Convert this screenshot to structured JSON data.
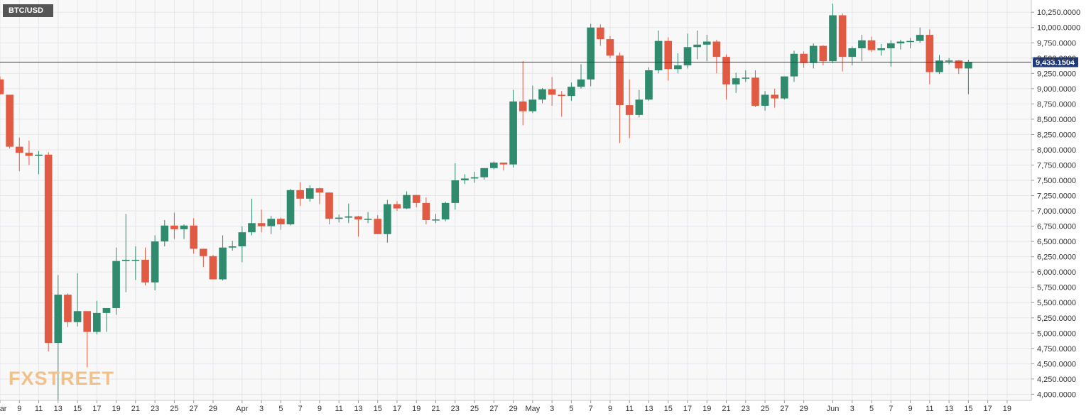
{
  "symbol": "BTC/USD",
  "logo": {
    "part1": "FX",
    "part2": "STREET"
  },
  "colors": {
    "up": "#2f8a6e",
    "down": "#e05a44",
    "grid": "#e6e6ec",
    "price_line": "#1f3a7a",
    "price_badge": "#1f3a7a"
  },
  "current_price": {
    "value": 9433.1504,
    "label": "9,433.1504"
  },
  "chart_data": {
    "type": "candlestick",
    "title": "",
    "xlabel": "",
    "ylabel": "",
    "ylim": [
      3900,
      10450
    ],
    "grid": true,
    "y_ticks": [
      {
        "value": 4000,
        "label": "4,000.0000"
      },
      {
        "value": 4250,
        "label": "4,250.0000"
      },
      {
        "value": 4500,
        "label": "4,500.0000"
      },
      {
        "value": 4750,
        "label": "4,750.0000"
      },
      {
        "value": 5000,
        "label": "5,000.0000"
      },
      {
        "value": 5250,
        "label": "5,250.0000"
      },
      {
        "value": 5500,
        "label": "5,500.0000"
      },
      {
        "value": 5750,
        "label": "5,750.0000"
      },
      {
        "value": 6000,
        "label": "6,000.0000"
      },
      {
        "value": 6250,
        "label": "6,250.0000"
      },
      {
        "value": 6500,
        "label": "6,500.0000"
      },
      {
        "value": 6750,
        "label": "6,750.0000"
      },
      {
        "value": 7000,
        "label": "7,000.0000"
      },
      {
        "value": 7250,
        "label": "7,250.0000"
      },
      {
        "value": 7500,
        "label": "7,500.0000"
      },
      {
        "value": 7750,
        "label": "7,750.0000"
      },
      {
        "value": 8000,
        "label": "8,000.0000"
      },
      {
        "value": 8250,
        "label": "8,250.0000"
      },
      {
        "value": 8500,
        "label": "8,500.0000"
      },
      {
        "value": 8750,
        "label": "8,750.0000"
      },
      {
        "value": 9000,
        "label": "9,000.0000"
      },
      {
        "value": 9250,
        "label": "9,250.0000"
      },
      {
        "value": 9500,
        "label": "9,500.0000"
      },
      {
        "value": 9750,
        "label": "9,750.0000"
      },
      {
        "value": 10000,
        "label": "10,000.0000"
      },
      {
        "value": 10250,
        "label": "10,250.0000"
      }
    ],
    "x_ticks": [
      {
        "date": "2020-03-07",
        "label": "Mar"
      },
      {
        "date": "2020-03-09",
        "label": "9"
      },
      {
        "date": "2020-03-11",
        "label": "11"
      },
      {
        "date": "2020-03-13",
        "label": "13"
      },
      {
        "date": "2020-03-15",
        "label": "15"
      },
      {
        "date": "2020-03-17",
        "label": "17"
      },
      {
        "date": "2020-03-19",
        "label": "19"
      },
      {
        "date": "2020-03-21",
        "label": "21"
      },
      {
        "date": "2020-03-23",
        "label": "23"
      },
      {
        "date": "2020-03-25",
        "label": "25"
      },
      {
        "date": "2020-03-27",
        "label": "27"
      },
      {
        "date": "2020-03-29",
        "label": "29"
      },
      {
        "date": "2020-04-01",
        "label": "Apr"
      },
      {
        "date": "2020-04-03",
        "label": "3"
      },
      {
        "date": "2020-04-05",
        "label": "5"
      },
      {
        "date": "2020-04-07",
        "label": "7"
      },
      {
        "date": "2020-04-09",
        "label": "9"
      },
      {
        "date": "2020-04-11",
        "label": "11"
      },
      {
        "date": "2020-04-13",
        "label": "13"
      },
      {
        "date": "2020-04-15",
        "label": "15"
      },
      {
        "date": "2020-04-17",
        "label": "17"
      },
      {
        "date": "2020-04-19",
        "label": "19"
      },
      {
        "date": "2020-04-21",
        "label": "21"
      },
      {
        "date": "2020-04-23",
        "label": "23"
      },
      {
        "date": "2020-04-25",
        "label": "25"
      },
      {
        "date": "2020-04-27",
        "label": "27"
      },
      {
        "date": "2020-04-29",
        "label": "29"
      },
      {
        "date": "2020-05-01",
        "label": "May"
      },
      {
        "date": "2020-05-03",
        "label": "3"
      },
      {
        "date": "2020-05-05",
        "label": "5"
      },
      {
        "date": "2020-05-07",
        "label": "7"
      },
      {
        "date": "2020-05-09",
        "label": "9"
      },
      {
        "date": "2020-05-11",
        "label": "11"
      },
      {
        "date": "2020-05-13",
        "label": "13"
      },
      {
        "date": "2020-05-15",
        "label": "15"
      },
      {
        "date": "2020-05-17",
        "label": "17"
      },
      {
        "date": "2020-05-19",
        "label": "19"
      },
      {
        "date": "2020-05-21",
        "label": "21"
      },
      {
        "date": "2020-05-23",
        "label": "23"
      },
      {
        "date": "2020-05-25",
        "label": "25"
      },
      {
        "date": "2020-05-27",
        "label": "27"
      },
      {
        "date": "2020-05-29",
        "label": "29"
      },
      {
        "date": "2020-06-01",
        "label": "Jun"
      },
      {
        "date": "2020-06-03",
        "label": "3"
      },
      {
        "date": "2020-06-05",
        "label": "5"
      },
      {
        "date": "2020-06-07",
        "label": "7"
      },
      {
        "date": "2020-06-09",
        "label": "9"
      },
      {
        "date": "2020-06-11",
        "label": "11"
      },
      {
        "date": "2020-06-13",
        "label": "13"
      },
      {
        "date": "2020-06-15",
        "label": "15"
      },
      {
        "date": "2020-06-17",
        "label": "17"
      },
      {
        "date": "2020-06-19",
        "label": "19"
      }
    ],
    "x_range": [
      "2020-03-07",
      "2020-06-20"
    ],
    "candles": [
      {
        "date": "2020-03-07",
        "o": 9150,
        "h": 9200,
        "l": 8900,
        "c": 8910
      },
      {
        "date": "2020-03-08",
        "o": 8900,
        "h": 8900,
        "l": 8020,
        "c": 8050
      },
      {
        "date": "2020-03-09",
        "o": 8050,
        "h": 8200,
        "l": 7650,
        "c": 7950
      },
      {
        "date": "2020-03-10",
        "o": 7950,
        "h": 8150,
        "l": 7750,
        "c": 7900
      },
      {
        "date": "2020-03-11",
        "o": 7900,
        "h": 7980,
        "l": 7600,
        "c": 7920
      },
      {
        "date": "2020-03-12",
        "o": 7920,
        "h": 7960,
        "l": 4700,
        "c": 4840
      },
      {
        "date": "2020-03-13",
        "o": 4840,
        "h": 5950,
        "l": 3900,
        "c": 5630
      },
      {
        "date": "2020-03-14",
        "o": 5630,
        "h": 5650,
        "l": 5100,
        "c": 5180
      },
      {
        "date": "2020-03-15",
        "o": 5180,
        "h": 5980,
        "l": 5110,
        "c": 5360
      },
      {
        "date": "2020-03-16",
        "o": 5360,
        "h": 5360,
        "l": 4440,
        "c": 5020
      },
      {
        "date": "2020-03-17",
        "o": 5020,
        "h": 5530,
        "l": 4980,
        "c": 5330
      },
      {
        "date": "2020-03-18",
        "o": 5330,
        "h": 5410,
        "l": 5020,
        "c": 5410
      },
      {
        "date": "2020-03-19",
        "o": 5410,
        "h": 6400,
        "l": 5300,
        "c": 6180
      },
      {
        "date": "2020-03-20",
        "o": 6180,
        "h": 6950,
        "l": 5670,
        "c": 6200
      },
      {
        "date": "2020-03-21",
        "o": 6200,
        "h": 6420,
        "l": 5870,
        "c": 6200
      },
      {
        "date": "2020-03-22",
        "o": 6200,
        "h": 6400,
        "l": 5780,
        "c": 5830
      },
      {
        "date": "2020-03-23",
        "o": 5830,
        "h": 6600,
        "l": 5700,
        "c": 6500
      },
      {
        "date": "2020-03-24",
        "o": 6500,
        "h": 6850,
        "l": 6420,
        "c": 6760
      },
      {
        "date": "2020-03-25",
        "o": 6760,
        "h": 6970,
        "l": 6540,
        "c": 6700
      },
      {
        "date": "2020-03-26",
        "o": 6700,
        "h": 6780,
        "l": 6540,
        "c": 6760
      },
      {
        "date": "2020-03-27",
        "o": 6760,
        "h": 6880,
        "l": 6300,
        "c": 6380
      },
      {
        "date": "2020-03-28",
        "o": 6380,
        "h": 6380,
        "l": 6080,
        "c": 6260
      },
      {
        "date": "2020-03-29",
        "o": 6260,
        "h": 6280,
        "l": 5880,
        "c": 5880
      },
      {
        "date": "2020-03-30",
        "o": 5880,
        "h": 6600,
        "l": 5860,
        "c": 6400
      },
      {
        "date": "2020-03-31",
        "o": 6400,
        "h": 6510,
        "l": 6350,
        "c": 6420
      },
      {
        "date": "2020-04-01",
        "o": 6420,
        "h": 6750,
        "l": 6160,
        "c": 6650
      },
      {
        "date": "2020-04-02",
        "o": 6650,
        "h": 7200,
        "l": 6600,
        "c": 6800
      },
      {
        "date": "2020-04-03",
        "o": 6800,
        "h": 7020,
        "l": 6650,
        "c": 6750
      },
      {
        "date": "2020-04-04",
        "o": 6750,
        "h": 6920,
        "l": 6620,
        "c": 6870
      },
      {
        "date": "2020-04-05",
        "o": 6870,
        "h": 6890,
        "l": 6690,
        "c": 6780
      },
      {
        "date": "2020-04-06",
        "o": 6780,
        "h": 7360,
        "l": 6760,
        "c": 7340
      },
      {
        "date": "2020-04-07",
        "o": 7340,
        "h": 7470,
        "l": 7080,
        "c": 7200
      },
      {
        "date": "2020-04-08",
        "o": 7200,
        "h": 7420,
        "l": 7150,
        "c": 7370
      },
      {
        "date": "2020-04-09",
        "o": 7370,
        "h": 7380,
        "l": 7110,
        "c": 7300
      },
      {
        "date": "2020-04-10",
        "o": 7300,
        "h": 7300,
        "l": 6780,
        "c": 6870
      },
      {
        "date": "2020-04-11",
        "o": 6870,
        "h": 6940,
        "l": 6810,
        "c": 6890
      },
      {
        "date": "2020-04-12",
        "o": 6890,
        "h": 7120,
        "l": 6800,
        "c": 6910
      },
      {
        "date": "2020-04-13",
        "o": 6910,
        "h": 6920,
        "l": 6580,
        "c": 6860
      },
      {
        "date": "2020-04-14",
        "o": 6860,
        "h": 6980,
        "l": 6800,
        "c": 6870
      },
      {
        "date": "2020-04-15",
        "o": 6870,
        "h": 6930,
        "l": 6620,
        "c": 6620
      },
      {
        "date": "2020-04-16",
        "o": 6620,
        "h": 7180,
        "l": 6480,
        "c": 7110
      },
      {
        "date": "2020-04-17",
        "o": 7110,
        "h": 7160,
        "l": 7000,
        "c": 7040
      },
      {
        "date": "2020-04-18",
        "o": 7040,
        "h": 7320,
        "l": 7030,
        "c": 7260
      },
      {
        "date": "2020-04-19",
        "o": 7260,
        "h": 7260,
        "l": 7060,
        "c": 7130
      },
      {
        "date": "2020-04-20",
        "o": 7130,
        "h": 7220,
        "l": 6780,
        "c": 6850
      },
      {
        "date": "2020-04-21",
        "o": 6850,
        "h": 6950,
        "l": 6800,
        "c": 6860
      },
      {
        "date": "2020-04-22",
        "o": 6860,
        "h": 7150,
        "l": 6830,
        "c": 7130
      },
      {
        "date": "2020-04-23",
        "o": 7130,
        "h": 7780,
        "l": 7020,
        "c": 7500
      },
      {
        "date": "2020-04-24",
        "o": 7500,
        "h": 7600,
        "l": 7440,
        "c": 7530
      },
      {
        "date": "2020-04-25",
        "o": 7530,
        "h": 7640,
        "l": 7460,
        "c": 7550
      },
      {
        "date": "2020-04-26",
        "o": 7550,
        "h": 7700,
        "l": 7510,
        "c": 7700
      },
      {
        "date": "2020-04-27",
        "o": 7700,
        "h": 7810,
        "l": 7680,
        "c": 7790
      },
      {
        "date": "2020-04-28",
        "o": 7790,
        "h": 7790,
        "l": 7660,
        "c": 7760
      },
      {
        "date": "2020-04-29",
        "o": 7760,
        "h": 8980,
        "l": 7710,
        "c": 8790
      },
      {
        "date": "2020-04-30",
        "o": 8790,
        "h": 9450,
        "l": 8400,
        "c": 8630
      },
      {
        "date": "2020-05-01",
        "o": 8630,
        "h": 9050,
        "l": 8600,
        "c": 8820
      },
      {
        "date": "2020-05-02",
        "o": 8820,
        "h": 9010,
        "l": 8760,
        "c": 8990
      },
      {
        "date": "2020-05-03",
        "o": 8990,
        "h": 9190,
        "l": 8720,
        "c": 8900
      },
      {
        "date": "2020-05-04",
        "o": 8900,
        "h": 8960,
        "l": 8540,
        "c": 8880
      },
      {
        "date": "2020-05-05",
        "o": 8880,
        "h": 9100,
        "l": 8800,
        "c": 9030
      },
      {
        "date": "2020-05-06",
        "o": 9030,
        "h": 9400,
        "l": 9000,
        "c": 9150
      },
      {
        "date": "2020-05-07",
        "o": 9150,
        "h": 10060,
        "l": 9040,
        "c": 10000
      },
      {
        "date": "2020-05-08",
        "o": 10000,
        "h": 10050,
        "l": 9700,
        "c": 9810
      },
      {
        "date": "2020-05-09",
        "o": 9810,
        "h": 9860,
        "l": 9500,
        "c": 9540
      },
      {
        "date": "2020-05-10",
        "o": 9540,
        "h": 9590,
        "l": 8110,
        "c": 8730
      },
      {
        "date": "2020-05-11",
        "o": 8730,
        "h": 9150,
        "l": 8190,
        "c": 8570
      },
      {
        "date": "2020-05-12",
        "o": 8570,
        "h": 8980,
        "l": 8530,
        "c": 8820
      },
      {
        "date": "2020-05-13",
        "o": 8820,
        "h": 9350,
        "l": 8800,
        "c": 9300
      },
      {
        "date": "2020-05-14",
        "o": 9300,
        "h": 9950,
        "l": 9250,
        "c": 9780
      },
      {
        "date": "2020-05-15",
        "o": 9780,
        "h": 9840,
        "l": 9130,
        "c": 9320
      },
      {
        "date": "2020-05-16",
        "o": 9320,
        "h": 9580,
        "l": 9250,
        "c": 9380
      },
      {
        "date": "2020-05-17",
        "o": 9380,
        "h": 9900,
        "l": 9330,
        "c": 9680
      },
      {
        "date": "2020-05-18",
        "o": 9680,
        "h": 9950,
        "l": 9480,
        "c": 9720
      },
      {
        "date": "2020-05-19",
        "o": 9720,
        "h": 9880,
        "l": 9450,
        "c": 9770
      },
      {
        "date": "2020-05-20",
        "o": 9770,
        "h": 9800,
        "l": 9250,
        "c": 9520
      },
      {
        "date": "2020-05-21",
        "o": 9520,
        "h": 9560,
        "l": 8820,
        "c": 9070
      },
      {
        "date": "2020-05-22",
        "o": 9070,
        "h": 9260,
        "l": 8930,
        "c": 9170
      },
      {
        "date": "2020-05-23",
        "o": 9170,
        "h": 9300,
        "l": 9110,
        "c": 9180
      },
      {
        "date": "2020-05-24",
        "o": 9180,
        "h": 9300,
        "l": 8700,
        "c": 8720
      },
      {
        "date": "2020-05-25",
        "o": 8720,
        "h": 8960,
        "l": 8640,
        "c": 8900
      },
      {
        "date": "2020-05-26",
        "o": 8900,
        "h": 9000,
        "l": 8690,
        "c": 8840
      },
      {
        "date": "2020-05-27",
        "o": 8840,
        "h": 9200,
        "l": 8820,
        "c": 9200
      },
      {
        "date": "2020-05-28",
        "o": 9200,
        "h": 9620,
        "l": 9110,
        "c": 9570
      },
      {
        "date": "2020-05-29",
        "o": 9570,
        "h": 9610,
        "l": 9340,
        "c": 9420
      },
      {
        "date": "2020-05-30",
        "o": 9420,
        "h": 9740,
        "l": 9330,
        "c": 9700
      },
      {
        "date": "2020-05-31",
        "o": 9700,
        "h": 9710,
        "l": 9380,
        "c": 9450
      },
      {
        "date": "2020-06-01",
        "o": 9450,
        "h": 10390,
        "l": 9420,
        "c": 10200
      },
      {
        "date": "2020-06-02",
        "o": 10200,
        "h": 10230,
        "l": 9280,
        "c": 9520
      },
      {
        "date": "2020-06-03",
        "o": 9520,
        "h": 9690,
        "l": 9380,
        "c": 9660
      },
      {
        "date": "2020-06-04",
        "o": 9660,
        "h": 9880,
        "l": 9450,
        "c": 9790
      },
      {
        "date": "2020-06-05",
        "o": 9790,
        "h": 9850,
        "l": 9600,
        "c": 9630
      },
      {
        "date": "2020-06-06",
        "o": 9630,
        "h": 9730,
        "l": 9540,
        "c": 9660
      },
      {
        "date": "2020-06-07",
        "o": 9660,
        "h": 9790,
        "l": 9360,
        "c": 9740
      },
      {
        "date": "2020-06-08",
        "o": 9740,
        "h": 9800,
        "l": 9640,
        "c": 9770
      },
      {
        "date": "2020-06-09",
        "o": 9770,
        "h": 9830,
        "l": 9660,
        "c": 9780
      },
      {
        "date": "2020-06-10",
        "o": 9780,
        "h": 10000,
        "l": 9750,
        "c": 9880
      },
      {
        "date": "2020-06-11",
        "o": 9880,
        "h": 9970,
        "l": 9070,
        "c": 9270
      },
      {
        "date": "2020-06-12",
        "o": 9270,
        "h": 9550,
        "l": 9240,
        "c": 9460
      },
      {
        "date": "2020-06-13",
        "o": 9460,
        "h": 9500,
        "l": 9400,
        "c": 9460
      },
      {
        "date": "2020-06-14",
        "o": 9460,
        "h": 9470,
        "l": 9240,
        "c": 9330
      },
      {
        "date": "2020-06-15",
        "o": 9330,
        "h": 9470,
        "l": 8910,
        "c": 9433
      }
    ]
  }
}
